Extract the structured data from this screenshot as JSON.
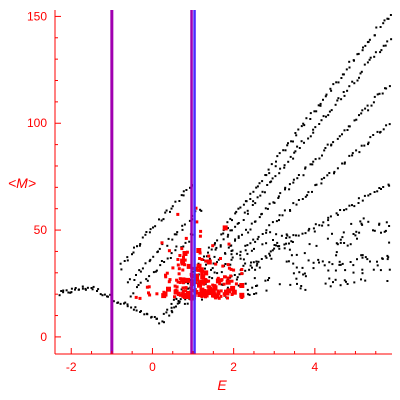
{
  "chart_data": {
    "type": "scatter",
    "xlabel": "E",
    "ylabel": "<M>",
    "xlim": [
      -2.4,
      5.9
    ],
    "ylim": [
      -8,
      153
    ],
    "x_ticks": [
      -2,
      0,
      2,
      4
    ],
    "y_ticks": [
      0,
      50,
      100,
      150
    ],
    "grid": false,
    "legend": "none",
    "colors": {
      "axis": "#ff0000",
      "black_points": "#000000",
      "red_points": "#ff0000",
      "vline_magenta": "#a000b0",
      "vline_blue_magenta": [
        "#4a2cff",
        "#a000b0"
      ]
    },
    "vlines": [
      {
        "x": -1.0,
        "style": "magenta"
      },
      {
        "x": 1.0,
        "style": "blue-magenta"
      }
    ],
    "black_bands": [
      {
        "from": [
          -2.3,
          20
        ],
        "peak": [
          -1.5,
          23
        ],
        "to": [
          0.3,
          6
        ],
        "n": 55
      },
      {
        "from": [
          0.3,
          10
        ],
        "to": [
          5.85,
          151
        ],
        "n": 110
      },
      {
        "from": [
          0.4,
          10
        ],
        "to": [
          5.85,
          140
        ],
        "n": 100
      },
      {
        "from": [
          0.5,
          12
        ],
        "to": [
          5.85,
          118
        ],
        "n": 95
      },
      {
        "from": [
          0.8,
          15
        ],
        "to": [
          5.85,
          100
        ],
        "n": 80
      },
      {
        "from": [
          1.2,
          18
        ],
        "to": [
          5.85,
          72
        ],
        "n": 70
      },
      {
        "from": [
          -0.8,
          32
        ],
        "to": [
          1.0,
          72
        ],
        "n": 35
      },
      {
        "from": [
          -0.6,
          25
        ],
        "to": [
          1.2,
          60
        ],
        "n": 30
      },
      {
        "from": [
          -0.5,
          20
        ],
        "to": [
          1.0,
          48
        ],
        "n": 25
      }
    ],
    "black_cloud": {
      "x_range": [
        1.8,
        5.85
      ],
      "y_range": [
        18,
        58
      ],
      "n": 170
    },
    "red_cluster": {
      "center": [
        1.15,
        18
      ],
      "spread": [
        0.55,
        9
      ],
      "n": 190,
      "x_range": [
        -0.4,
        2.2
      ],
      "y_range": [
        3,
        70
      ]
    }
  }
}
